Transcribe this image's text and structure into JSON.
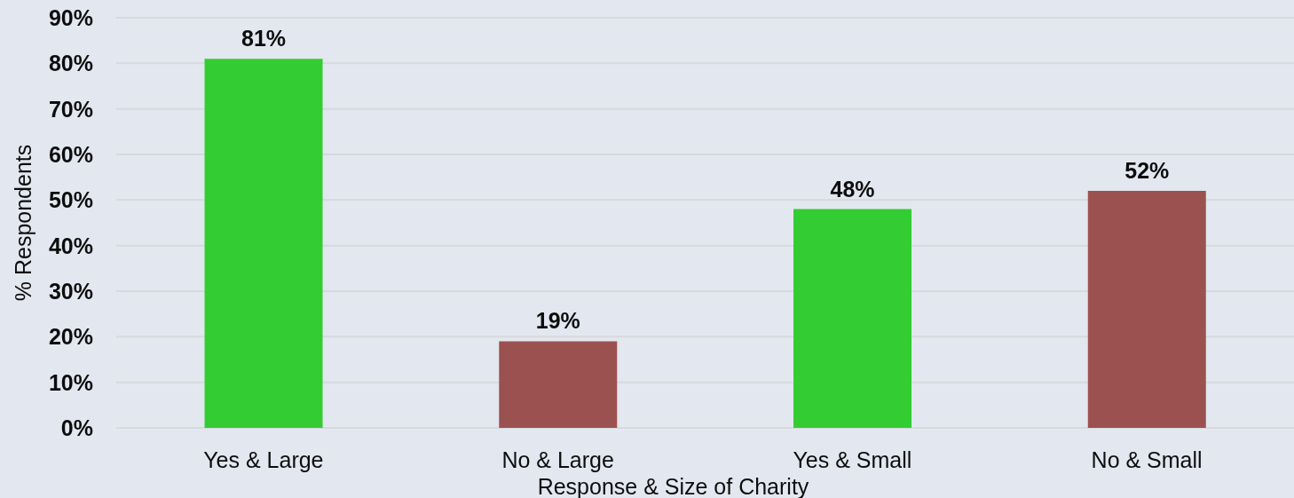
{
  "chart_data": {
    "type": "bar",
    "xlabel": "Response & Size of Charity",
    "ylabel": "% Respondents",
    "categories": [
      "Yes & Large",
      "No & Large",
      "Yes & Small",
      "No & Small"
    ],
    "values": [
      81,
      19,
      48,
      52
    ],
    "colors": [
      "#33cc33",
      "#9c5151",
      "#33cc33",
      "#9c5151"
    ],
    "value_labels": [
      "81%",
      "19%",
      "48%",
      "52%"
    ],
    "ylim": [
      0,
      90
    ],
    "yticks": [
      {
        "value": 0,
        "label": "0%"
      },
      {
        "value": 10,
        "label": "10%"
      },
      {
        "value": 20,
        "label": "20%"
      },
      {
        "value": 30,
        "label": "30%"
      },
      {
        "value": 40,
        "label": "40%"
      },
      {
        "value": 50,
        "label": "50%"
      },
      {
        "value": 60,
        "label": "60%"
      },
      {
        "value": 70,
        "label": "70%"
      },
      {
        "value": 80,
        "label": "80%"
      },
      {
        "value": 90,
        "label": "90%"
      }
    ],
    "grid": "y"
  }
}
